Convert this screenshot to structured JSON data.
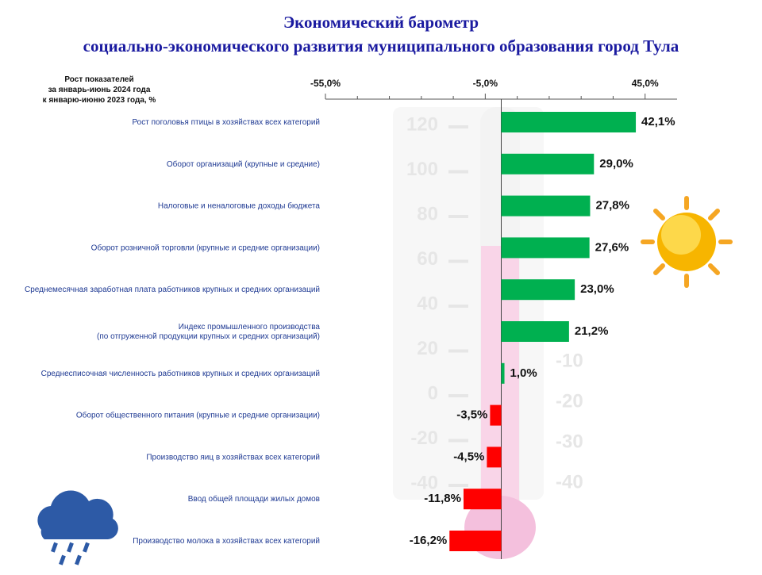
{
  "chart_data": {
    "type": "barh",
    "title": "Экономический барометр",
    "subtitle": "социально-экономического развития муниципального образования город Тула",
    "axis_caption": "Рост показателей\nза  январь-июнь 2024 года\nк  январю-июню 2023 года, %",
    "categories": [
      "Рост поголовья птицы в хозяйствах всех категорий",
      "Оборот  организаций  (крупные и средние)",
      "Налоговые  и неналоговые  доходы бюджета",
      "Оборот  розничной торговли  (крупные и средние организации)",
      "Среднемесячная  заработная плата работников крупных и средних организаций",
      "Индекс  промышленного  производства\n(по отгруженной продукции крупных и средних организаций)",
      "Среднесписочная численность работников крупных и средних организаций",
      "Оборот  общественного питания (крупные и средние организации)",
      "Производство  яиц в хозяйствах всех категорий",
      "Ввод общей площади жилых домов",
      "Производство  молока в хозяйствах всех категорий"
    ],
    "values": [
      42.1,
      29.0,
      27.8,
      27.6,
      23.0,
      21.2,
      1.0,
      -3.5,
      -4.5,
      -11.8,
      -16.2
    ],
    "value_labels": [
      "42,1%",
      "29,0%",
      "27,8%",
      "27,6%",
      "23,0%",
      "21,2%",
      "1,0%",
      "-3,5%",
      "-4,5%",
      "-11,8%",
      "-16,2%"
    ],
    "positive_color": "#00b050",
    "negative_color": "#ff0000",
    "xlim": [
      -55,
      55
    ],
    "xticks": [
      {
        "value": -55,
        "label": "-55,0%"
      },
      {
        "value": -5,
        "label": "-5,0%"
      },
      {
        "value": 45,
        "label": "45,0%"
      }
    ],
    "minor_xticks": [
      -45,
      -35,
      -25,
      -15,
      5,
      15,
      25,
      35
    ]
  },
  "thermometer": {
    "left_scale": [
      "120",
      "100",
      "80",
      "60",
      "40",
      "20",
      "0",
      "-20",
      "-40"
    ],
    "right_scale": [
      "-10",
      "-20",
      "-30",
      "-40"
    ]
  }
}
